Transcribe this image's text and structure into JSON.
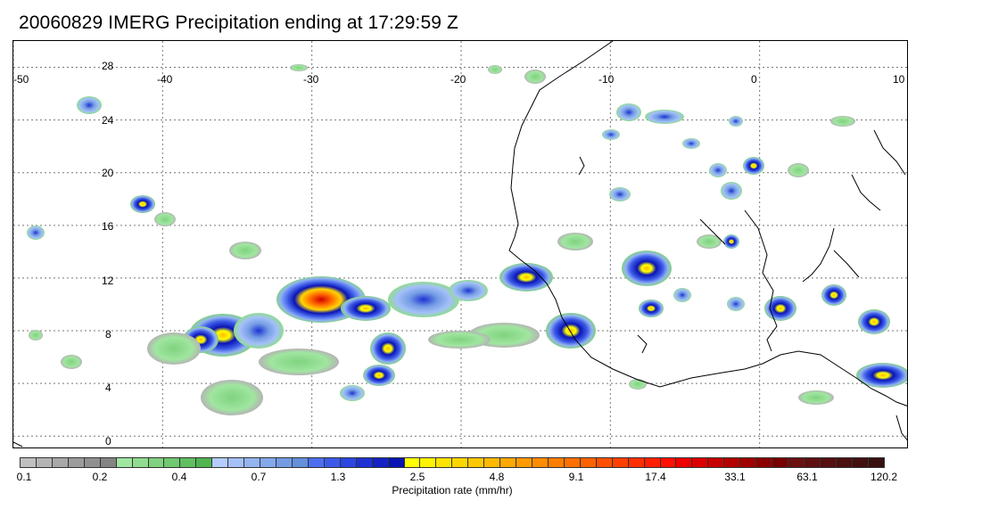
{
  "title": "20060829 IMERG Precipitation ending at 17:29:59 Z",
  "map": {
    "lon_labels": [
      "-50",
      "-40",
      "-30",
      "-20",
      "-10",
      "0",
      "10"
    ],
    "lat_labels": [
      "28",
      "24",
      "20",
      "16",
      "12",
      "8",
      "4",
      "0"
    ],
    "lon_range": [
      -50,
      10
    ],
    "lat_range": [
      -1,
      30
    ],
    "grid": "dotted",
    "coastline_color": "#000000"
  },
  "colorbar": {
    "label": "Precipitation rate (mm/hr)",
    "tick_labels": [
      "0.1",
      "0.2",
      "0.4",
      "0.7",
      "1.3",
      "2.5",
      "4.8",
      "9.1",
      "17.4",
      "33.1",
      "63.1",
      "120.2"
    ],
    "colors": [
      "#c0c0c0",
      "#b4b4b4",
      "#a8a8a8",
      "#9c9c9c",
      "#909090",
      "#848484",
      "#a0e6a0",
      "#90dc90",
      "#80d280",
      "#70c870",
      "#60be60",
      "#50b450",
      "#b4ccff",
      "#a4c0f8",
      "#94b4f0",
      "#84a8ea",
      "#749ce4",
      "#6490dc",
      "#4c6ef0",
      "#3c5ae8",
      "#2c46e0",
      "#1e32d4",
      "#1422c4",
      "#0a14b4",
      "#ffff00",
      "#fff200",
      "#ffe400",
      "#ffd600",
      "#ffc800",
      "#ffba00",
      "#ffa800",
      "#ff9a00",
      "#ff8c00",
      "#ff7e00",
      "#ff7000",
      "#ff6200",
      "#ff5000",
      "#ff4000",
      "#ff3000",
      "#ff2000",
      "#ff1000",
      "#f00000",
      "#dc0000",
      "#c80000",
      "#b40000",
      "#a00000",
      "#8c0000",
      "#780000",
      "#6a1010",
      "#601010",
      "#561010",
      "#4c1010",
      "#421010",
      "#381010"
    ]
  }
}
